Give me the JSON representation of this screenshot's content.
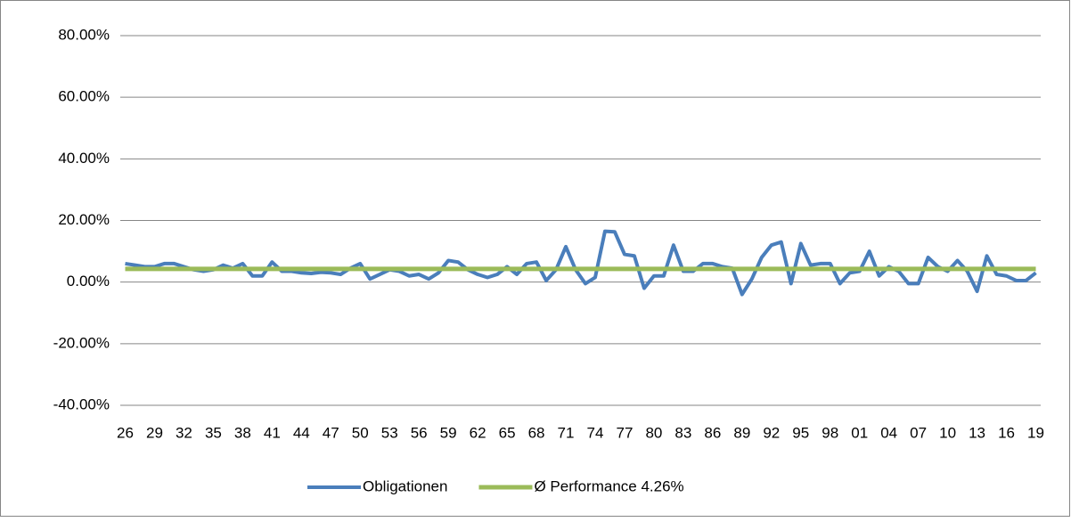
{
  "chart_data": {
    "type": "line",
    "categories": [
      "26",
      null,
      null,
      "29",
      null,
      null,
      "32",
      null,
      null,
      "35",
      null,
      null,
      "38",
      null,
      null,
      "41",
      null,
      null,
      "44",
      null,
      null,
      "47",
      null,
      null,
      "50",
      null,
      null,
      "53",
      null,
      null,
      "56",
      null,
      null,
      "59",
      null,
      null,
      "62",
      null,
      null,
      "65",
      null,
      null,
      "68",
      null,
      null,
      "71",
      null,
      null,
      "74",
      null,
      null,
      "77",
      null,
      null,
      "80",
      null,
      null,
      "83",
      null,
      null,
      "86",
      null,
      null,
      "89",
      null,
      null,
      "92",
      null,
      null,
      "95",
      null,
      null,
      "98",
      null,
      null,
      "01",
      null,
      null,
      "04",
      null,
      null,
      "07",
      null,
      null,
      "10",
      null,
      null,
      "13",
      null,
      null,
      "16",
      null,
      null,
      "19"
    ],
    "series": [
      {
        "name": "Obligationen",
        "color": "#4a7ebb",
        "values": [
          6,
          5.5,
          5,
          5,
          6,
          6,
          5,
          4,
          3.5,
          4,
          5.5,
          4.5,
          6,
          2,
          2,
          6.5,
          3.5,
          3.5,
          3,
          2.8,
          3.2,
          3,
          2.5,
          4.5,
          6,
          1,
          2.5,
          4,
          3.5,
          2,
          2.5,
          1,
          3,
          7,
          6.5,
          4,
          2.5,
          1.5,
          2.5,
          5,
          2.5,
          6,
          6.5,
          0.5,
          4,
          11.5,
          4,
          -0.5,
          1.5,
          16.5,
          16.3,
          9,
          8.5,
          -2,
          2,
          2,
          12,
          3.5,
          3.5,
          6,
          6,
          5,
          4.5,
          -4,
          1,
          8,
          12,
          13,
          -0.5,
          12.5,
          5.5,
          6,
          6,
          -0.5,
          3,
          3.5,
          10,
          2,
          5,
          3.5,
          -0.5,
          -0.5,
          8,
          5,
          3.5,
          7,
          3.5,
          -3,
          8.5,
          2.5,
          2,
          0.5,
          0.5,
          3
        ]
      },
      {
        "name": "Ø Performance 4.26%",
        "color": "#9bbb59",
        "values": [
          4.26,
          4.26,
          4.26,
          4.26,
          4.26,
          4.26,
          4.26,
          4.26,
          4.26,
          4.26,
          4.26,
          4.26,
          4.26,
          4.26,
          4.26,
          4.26,
          4.26,
          4.26,
          4.26,
          4.26,
          4.26,
          4.26,
          4.26,
          4.26,
          4.26,
          4.26,
          4.26,
          4.26,
          4.26,
          4.26,
          4.26,
          4.26,
          4.26,
          4.26,
          4.26,
          4.26,
          4.26,
          4.26,
          4.26,
          4.26,
          4.26,
          4.26,
          4.26,
          4.26,
          4.26,
          4.26,
          4.26,
          4.26,
          4.26,
          4.26,
          4.26,
          4.26,
          4.26,
          4.26,
          4.26,
          4.26,
          4.26,
          4.26,
          4.26,
          4.26,
          4.26,
          4.26,
          4.26,
          4.26,
          4.26,
          4.26,
          4.26,
          4.26,
          4.26,
          4.26,
          4.26,
          4.26,
          4.26,
          4.26,
          4.26,
          4.26,
          4.26,
          4.26,
          4.26,
          4.26,
          4.26,
          4.26,
          4.26,
          4.26,
          4.26,
          4.26,
          4.26,
          4.26,
          4.26,
          4.26,
          4.26,
          4.26,
          4.26,
          4.26
        ]
      }
    ],
    "ylim": [
      -40,
      80
    ],
    "yticks": [
      {
        "value": -40,
        "label": "-40.00%"
      },
      {
        "value": -20,
        "label": "-20.00%"
      },
      {
        "value": 0,
        "label": "0.00%"
      },
      {
        "value": 20,
        "label": "20.00%"
      },
      {
        "value": 40,
        "label": "40.00%"
      },
      {
        "value": 60,
        "label": "60.00%"
      },
      {
        "value": 80,
        "label": "80.00%"
      }
    ],
    "grid": true,
    "legend": "bottom"
  }
}
